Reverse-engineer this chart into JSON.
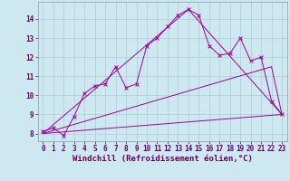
{
  "xlabel": "Windchill (Refroidissement éolien,°C)",
  "background_color": "#cde8f0",
  "line_color": "#990099",
  "grid_color": "#b0ccd4",
  "xlim": [
    -0.5,
    23.5
  ],
  "ylim": [
    7.6,
    14.9
  ],
  "xticks": [
    0,
    1,
    2,
    3,
    4,
    5,
    6,
    7,
    8,
    9,
    10,
    11,
    12,
    13,
    14,
    15,
    16,
    17,
    18,
    19,
    20,
    21,
    22,
    23
  ],
  "yticks": [
    8,
    9,
    10,
    11,
    12,
    13,
    14
  ],
  "series1_x": [
    0,
    1,
    2,
    3,
    4,
    5,
    6,
    7,
    8,
    9,
    10,
    11,
    12,
    13,
    14,
    15,
    16,
    17,
    18,
    19,
    20,
    21,
    22,
    23
  ],
  "series1_y": [
    8.1,
    8.3,
    7.9,
    8.9,
    10.1,
    10.5,
    10.6,
    11.5,
    10.4,
    10.6,
    12.6,
    13.0,
    13.6,
    14.2,
    14.5,
    14.2,
    12.6,
    12.1,
    12.2,
    13.0,
    11.8,
    12.0,
    9.7,
    9.0
  ],
  "series2_x": [
    0,
    23
  ],
  "series2_y": [
    8.0,
    9.0
  ],
  "series3_x": [
    0,
    22,
    23
  ],
  "series3_y": [
    8.0,
    11.5,
    9.0
  ],
  "series4_x": [
    0,
    14,
    23
  ],
  "series4_y": [
    8.0,
    14.5,
    9.0
  ],
  "tick_fontsize": 5.5,
  "xlabel_fontsize": 6.5,
  "font_family": "monospace"
}
